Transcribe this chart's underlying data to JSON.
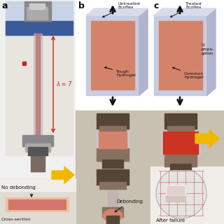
{
  "bg_color": "#f0f0f0",
  "panel_a": {
    "label": "a",
    "stretch_text": "λ = 7",
    "stretch_color": "#cc2222",
    "no_debonding_text": "No debonding",
    "cross_section_text": "Cross-section",
    "sample_color": "#d4756a",
    "bg_photo_color": "#e8e4de",
    "bg_top_color": "#c8d8ec",
    "blue_bar_color": "#3a5a9c",
    "clamp_dark": "#555555",
    "clamp_mid": "#888888",
    "clamp_light": "#aaaaaa",
    "strip_outer": "#c8a8b0",
    "strip_inner": "#b07878",
    "bottom_post_color": "#7a6a60"
  },
  "panel_b": {
    "label": "b",
    "untreated_text": "Untreated\nEcoflex",
    "tough_text": "Tough\nhydrogel",
    "debonding_text": "Debonding",
    "elastomer_color": "#c8cce0",
    "hydrogel_color": "#d4836a",
    "photo_bg": "#c8c0b4",
    "clamp_dark": "#4a3a2a",
    "clamp_mid": "#7a6a5a",
    "clamp_light": "#aaa090"
  },
  "panel_c": {
    "label": "c",
    "treated_text": "Treated\nEcoflex",
    "crack_text": "Cr\npropa",
    "common_text": "Common\nhydrogel",
    "after_failure_text": "After failure",
    "elastomer_color": "#c8cce0",
    "hydrogel_color": "#d4836a",
    "photo_bg": "#c8c0b4",
    "clamp_dark": "#4a3a2a",
    "clamp_mid": "#7a6a5a",
    "petri_color": "#e8e8e4",
    "grid_color": "#cc5555",
    "sample_white": "#e8dcd8"
  },
  "yellow_arrow_color": "#f0b800",
  "white": "#ffffff",
  "black": "#111111"
}
